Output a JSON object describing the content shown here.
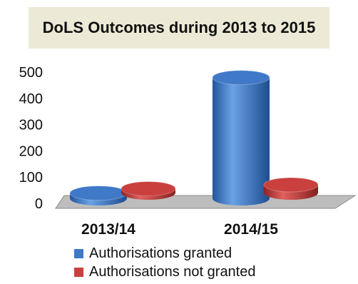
{
  "chart_data": {
    "type": "bar",
    "title": "DoLS Outcomes during 2013 to 2015",
    "categories": [
      "2013/14",
      "2014/15"
    ],
    "series": [
      {
        "name": "Authorisations granted",
        "values": [
          20,
          460
        ]
      },
      {
        "name": "Authorisations not granted",
        "values": [
          15,
          30
        ]
      }
    ],
    "ylim": [
      0,
      500
    ],
    "yticks": [
      0,
      100,
      200,
      300,
      400,
      500
    ],
    "xlabel": "",
    "ylabel": "",
    "grid": false,
    "legend": "bottom",
    "colors": {
      "series0": "#3f79c7",
      "series1": "#c9403f"
    }
  }
}
